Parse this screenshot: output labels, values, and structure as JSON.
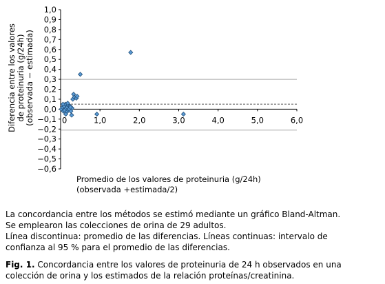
{
  "chart_data": {
    "type": "scatter",
    "ylabel_lines": [
      "Diferencia entre los valores",
      "de proteinuria (g/24h)",
      "(observada − estimada)"
    ],
    "xlabel_lines": [
      "Promedio de los valores de proteinuria (g/24h)",
      "(observada +estimada/2)"
    ],
    "xlim": [
      0,
      6
    ],
    "ylim": [
      -0.6,
      1.0
    ],
    "x_ticks": [
      "0",
      "1,0",
      "2,0",
      "3,0",
      "4,0",
      "5,0",
      "6,0"
    ],
    "y_ticks": [
      "1,0",
      "0,9",
      "0,8",
      "0,7",
      "0,6",
      "0,5",
      "0,4",
      "0,3",
      "0,2",
      "0,1",
      "0,0",
      "−0,1",
      "−0,2",
      "−0,3",
      "−0,4",
      "−0,5",
      "−0,6"
    ],
    "mean_difference": 0.05,
    "limits_of_agreement": [
      -0.21,
      0.3
    ],
    "point_color": "#5b9bd5",
    "grid": false,
    "points": [
      {
        "x": 0.02,
        "y": 0.0
      },
      {
        "x": 0.05,
        "y": 0.02
      },
      {
        "x": 0.07,
        "y": -0.02
      },
      {
        "x": 0.09,
        "y": 0.03
      },
      {
        "x": 0.1,
        "y": -0.01
      },
      {
        "x": 0.12,
        "y": 0.05
      },
      {
        "x": 0.14,
        "y": 0.01
      },
      {
        "x": 0.15,
        "y": -0.03
      },
      {
        "x": 0.17,
        "y": 0.02
      },
      {
        "x": 0.19,
        "y": 0.04
      },
      {
        "x": 0.2,
        "y": -0.01
      },
      {
        "x": 0.22,
        "y": 0.0
      },
      {
        "x": 0.24,
        "y": 0.03
      },
      {
        "x": 0.26,
        "y": -0.02
      },
      {
        "x": 0.28,
        "y": -0.06
      },
      {
        "x": 0.29,
        "y": 0.01
      },
      {
        "x": 0.31,
        "y": 0.1
      },
      {
        "x": 0.33,
        "y": 0.15
      },
      {
        "x": 0.35,
        "y": 0.12
      },
      {
        "x": 0.4,
        "y": 0.11
      },
      {
        "x": 0.42,
        "y": 0.13
      },
      {
        "x": 0.5,
        "y": 0.35
      },
      {
        "x": 0.13,
        "y": -0.05
      },
      {
        "x": 0.06,
        "y": 0.05
      },
      {
        "x": 0.18,
        "y": 0.06
      },
      {
        "x": 0.25,
        "y": 0.02
      },
      {
        "x": 0.92,
        "y": -0.05
      },
      {
        "x": 1.78,
        "y": 0.57
      },
      {
        "x": 3.12,
        "y": -0.05
      }
    ]
  },
  "notes": {
    "line1": "La concordancia entre los métodos se estimó mediante un gráfico Bland-Altman.",
    "line2": "Se emplearon las colecciones de orina de 29 adultos.",
    "line3": "Línea discontinua: promedio de las diferencias. Líneas continuas: intervalo de",
    "line4": "confianza al 95 % para el promedio de las diferencias."
  },
  "caption": {
    "label": "Fig. 1.",
    "line1_rest": " Concordancia entre los valores de proteinuria de 24 h observados en una",
    "line2": "colección de orina y los estimados de la relación proteínas/creatinina."
  }
}
